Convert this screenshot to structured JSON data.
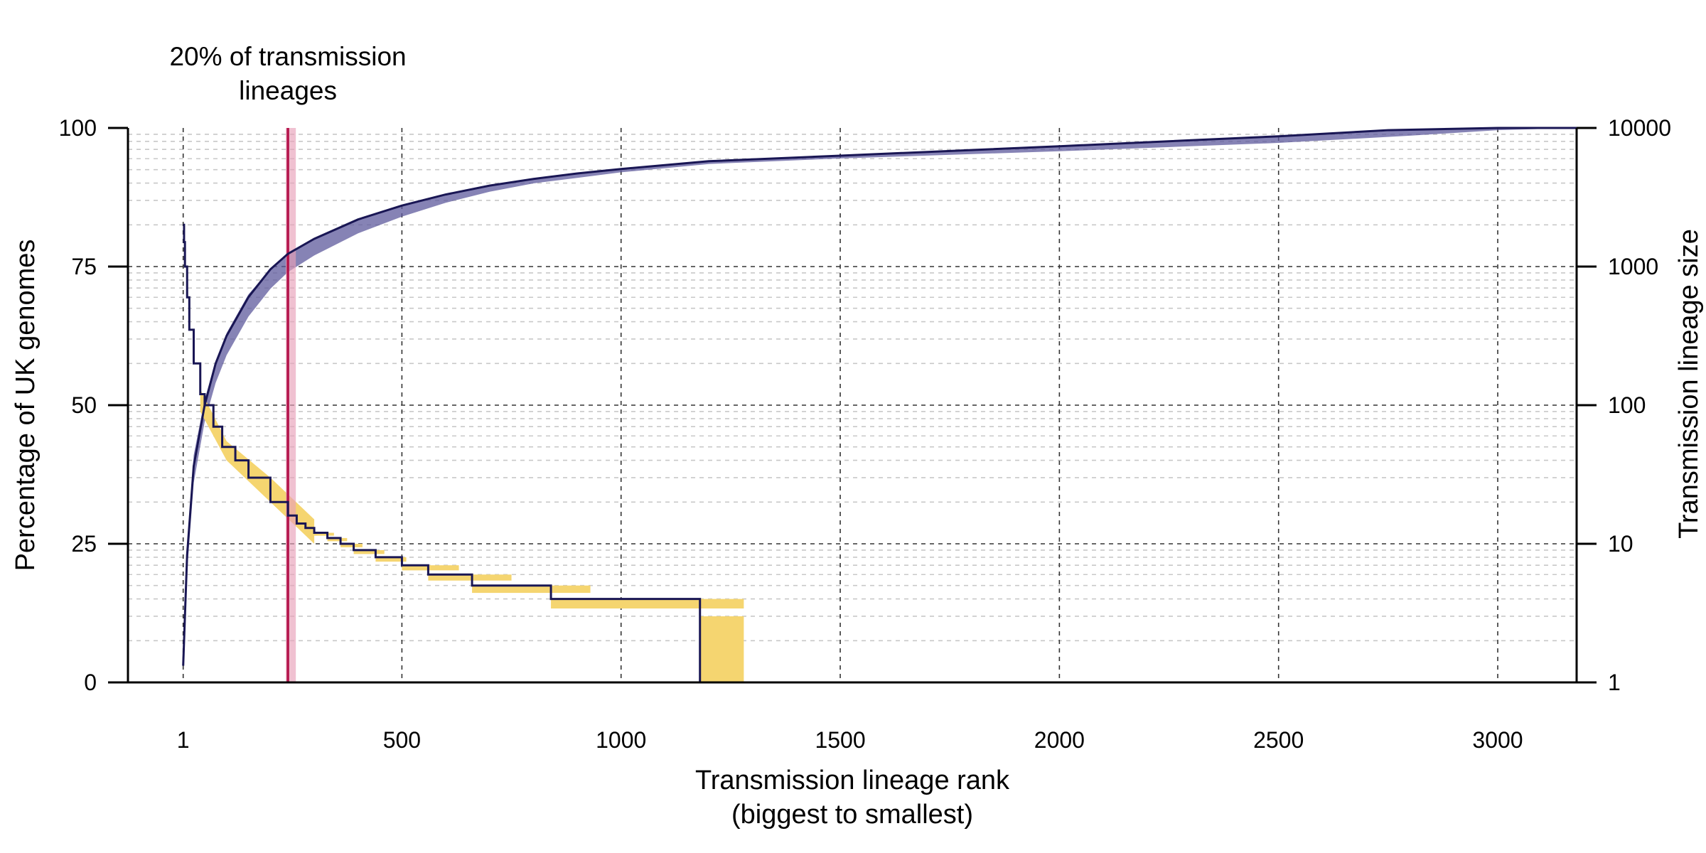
{
  "chart_data": {
    "type": "line",
    "annotation": {
      "lines": [
        "20% of transmission",
        "lineages"
      ],
      "x": 240,
      "band": [
        235,
        258
      ]
    },
    "x_axis": {
      "label_lines": [
        "Transmission lineage rank",
        "(biggest to smallest)"
      ],
      "range": [
        -125,
        3180
      ],
      "ticks": [
        1,
        500,
        1000,
        1500,
        2000,
        2500,
        3000
      ],
      "tick_labels": [
        "1",
        "500",
        "1000",
        "1500",
        "2000",
        "2500",
        "3000"
      ]
    },
    "y_left": {
      "label": "Percentage of UK genomes",
      "range": [
        0,
        100
      ],
      "ticks": [
        0,
        25,
        50,
        75,
        100
      ],
      "tick_labels": [
        "0",
        "25",
        "50",
        "75",
        "100"
      ]
    },
    "y_right": {
      "label": "Transmission lineage size",
      "scale": "log",
      "range": [
        1,
        10000
      ],
      "ticks": [
        1,
        10,
        100,
        1000,
        10000
      ],
      "tick_labels": [
        "1",
        "10",
        "100",
        "1000",
        "10000"
      ]
    },
    "grid": {
      "major": true,
      "minor": true
    },
    "series": [
      {
        "axis": "left",
        "kind": "band",
        "color": "#5d5a9c",
        "x": [
          1,
          10,
          25,
          50,
          75,
          100,
          150,
          200,
          240,
          300,
          400,
          500,
          600,
          700,
          800,
          900,
          1000,
          1200,
          1500,
          2000,
          2500,
          2800,
          3000,
          3180
        ],
        "lower": [
          5,
          20,
          36,
          47,
          54,
          59,
          66,
          71,
          74,
          77,
          81,
          84,
          86.5,
          88.5,
          90,
          91,
          92,
          93.5,
          94.5,
          95.8,
          97.3,
          98.6,
          99.6,
          100
        ],
        "upper": [
          7,
          25,
          41,
          51,
          58,
          63,
          70,
          74.5,
          77.3,
          80,
          83.5,
          86,
          88,
          89.6,
          90.8,
          91.8,
          92.6,
          94,
          95,
          96.7,
          98.5,
          99.6,
          100,
          100
        ]
      },
      {
        "axis": "left",
        "kind": "line",
        "color": "#191654",
        "x": [
          1,
          5,
          10,
          25,
          50,
          75,
          100,
          150,
          200,
          240,
          300,
          400,
          500,
          600,
          700,
          800,
          900,
          1000,
          1200,
          1500,
          2000,
          2500,
          2750,
          3000,
          3180
        ],
        "y": [
          3,
          12,
          23,
          39,
          50,
          57.5,
          62.5,
          69.5,
          74.5,
          77.3,
          80,
          83.5,
          86,
          88,
          89.6,
          90.8,
          91.8,
          92.6,
          94,
          95,
          96.7,
          98.5,
          99.6,
          100,
          100
        ]
      },
      {
        "axis": "right",
        "kind": "step-band",
        "color": "#f5d570",
        "x_start": [
          300,
          330,
          360,
          390,
          440,
          500,
          560,
          660,
          840,
          1180
        ],
        "x_end": [
          345,
          375,
          410,
          460,
          510,
          630,
          750,
          930,
          1280,
          1280
        ],
        "value": [
          12,
          11,
          10,
          9,
          8,
          7,
          6,
          5,
          4,
          3
        ]
      },
      {
        "axis": "right",
        "kind": "step",
        "color": "#191654",
        "x": [
          1,
          3,
          5,
          10,
          15,
          25,
          40,
          50,
          70,
          90,
          120,
          150,
          200,
          240,
          260,
          280,
          300,
          330,
          360,
          390,
          440,
          500,
          560,
          660,
          840,
          1180,
          1180,
          2800
        ],
        "y": [
          2000,
          1500,
          1000,
          600,
          350,
          200,
          120,
          100,
          70,
          50,
          40,
          30,
          20,
          16,
          14,
          13,
          12,
          11,
          10,
          9,
          8,
          7,
          6,
          5,
          4,
          3,
          1,
          1
        ]
      }
    ]
  }
}
